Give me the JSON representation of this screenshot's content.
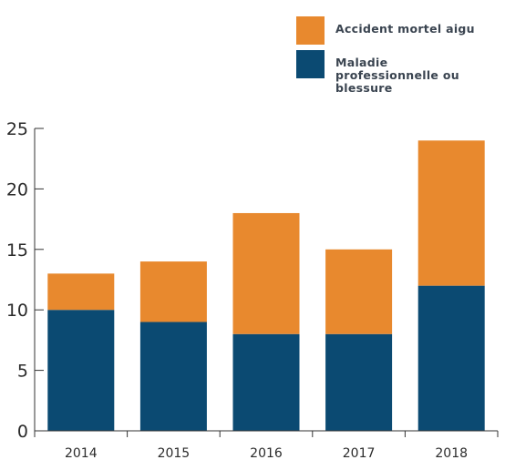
{
  "chart_data": {
    "type": "bar",
    "stacked": true,
    "categories": [
      "2014",
      "2015",
      "2016",
      "2017",
      "2018"
    ],
    "series": [
      {
        "name": "Maladie professionnelle ou blessure",
        "values": [
          10,
          9,
          8,
          8,
          12
        ],
        "color": "#0b4a72"
      },
      {
        "name": "Accident mortel aigu",
        "values": [
          3,
          5,
          10,
          7,
          12
        ],
        "color": "#e8892e"
      }
    ],
    "ylim": [
      0,
      25
    ],
    "yticks": [
      0,
      5,
      10,
      15,
      20,
      25
    ],
    "grid": false,
    "legend_position": "top-right"
  },
  "legend": {
    "items": [
      {
        "label": "Accident mortel aigu",
        "color": "#e8892e"
      },
      {
        "label": "Maladie professionnelle ou blessure",
        "color": "#0b4a72"
      }
    ]
  }
}
